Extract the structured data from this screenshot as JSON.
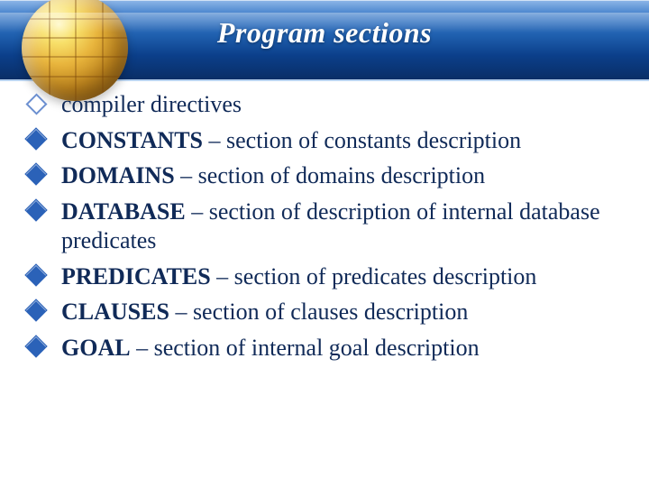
{
  "header": {
    "title": "Program sections",
    "title_color": "#ffffff",
    "title_fontsize": 32,
    "banner_gradient": [
      "#8fb7e8",
      "#3d7cc9",
      "#1f5fae",
      "#0b3f8a",
      "#0a2e66"
    ]
  },
  "globe": {
    "gradient": [
      "#fff9c9",
      "#f8e06a",
      "#e9b63e",
      "#c68a1f",
      "#8f5a0f"
    ]
  },
  "body": {
    "text_color": "#102a58",
    "font_family": "Times New Roman",
    "item_fontsize": 26,
    "bullet_filled_color": "#2b62b8",
    "bullet_outline_color": "#6b8fd0",
    "items": [
      {
        "bullet": "outline",
        "keyword": "",
        "text": "compiler directives"
      },
      {
        "bullet": "filled",
        "keyword": "CONSTANTS",
        "text": " – section of constants description"
      },
      {
        "bullet": "filled",
        "keyword": "DOMAINS",
        "text": " – section of domains description"
      },
      {
        "bullet": "filled",
        "keyword": "DATABASE",
        "text": " – section of description of internal database predicates"
      },
      {
        "bullet": "filled",
        "keyword": "PREDICATES",
        "text": " – section of predicates description"
      },
      {
        "bullet": "filled",
        "keyword": "CLAUSES",
        "text": " – section of clauses description"
      },
      {
        "bullet": "filled",
        "keyword": "GOAL",
        "text": " – section of internal goal description"
      }
    ]
  }
}
